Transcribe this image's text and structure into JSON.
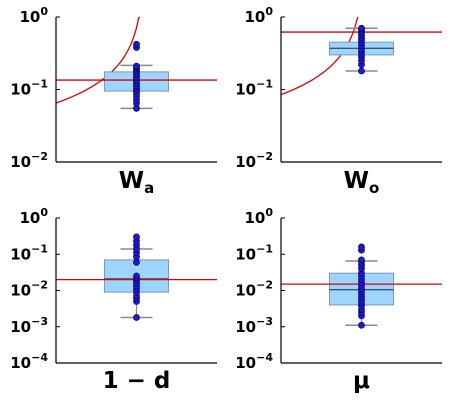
{
  "chart_data": [
    {
      "type": "box",
      "id": "wa",
      "xlabel_main": "W",
      "xlabel_sub": "a",
      "yscale": "log",
      "ylim": [
        0.01,
        1
      ],
      "yticks": [
        {
          "value": 0.01,
          "base": "10",
          "exp": "−2"
        },
        {
          "value": 0.1,
          "base": "10",
          "exp": "−1"
        },
        {
          "value": 1,
          "base": "10",
          "exp": "0"
        }
      ],
      "box": {
        "whisker_low": 0.055,
        "q1": 0.095,
        "median": 0.135,
        "q3": 0.175,
        "whisker_high": 0.215
      },
      "points": [
        0.055,
        0.065,
        0.072,
        0.08,
        0.088,
        0.095,
        0.1,
        0.105,
        0.112,
        0.12,
        0.128,
        0.135,
        0.145,
        0.155,
        0.165,
        0.175,
        0.185,
        0.195,
        0.205,
        0.21,
        0.38,
        0.42
      ],
      "reference_line": 0.135,
      "curve": {
        "y_start": 0.065,
        "asymptote_frac": 0.55
      }
    },
    {
      "type": "box",
      "id": "wo",
      "xlabel_main": "W",
      "xlabel_sub": "o",
      "yscale": "log",
      "ylim": [
        0.01,
        1
      ],
      "yticks": [
        {
          "value": 0.01,
          "base": "10",
          "exp": "−2"
        },
        {
          "value": 0.1,
          "base": "10",
          "exp": "−1"
        },
        {
          "value": 1,
          "base": "10",
          "exp": "0"
        }
      ],
      "box": {
        "whisker_low": 0.18,
        "q1": 0.3,
        "median": 0.37,
        "q3": 0.45,
        "whisker_high": 0.7
      },
      "points": [
        0.18,
        0.22,
        0.25,
        0.28,
        0.3,
        0.33,
        0.36,
        0.4,
        0.44,
        0.48,
        0.52,
        0.56,
        0.6,
        0.64,
        0.68,
        0.7
      ],
      "reference_line": 0.62,
      "curve": {
        "y_start": 0.085,
        "asymptote_frac": 0.52
      }
    },
    {
      "type": "box",
      "id": "one-minus-d",
      "xlabel_main": "1 − d",
      "xlabel_sub": "",
      "yscale": "log",
      "ylim": [
        0.0001,
        1
      ],
      "yticks": [
        {
          "value": 0.0001,
          "base": "10",
          "exp": "−4"
        },
        {
          "value": 0.001,
          "base": "10",
          "exp": "−3"
        },
        {
          "value": 0.01,
          "base": "10",
          "exp": "−2"
        },
        {
          "value": 0.1,
          "base": "10",
          "exp": "−1"
        },
        {
          "value": 1,
          "base": "10",
          "exp": "0"
        }
      ],
      "box": {
        "whisker_low": 0.0018,
        "q1": 0.009,
        "median": 0.021,
        "q3": 0.07,
        "whisker_high": 0.14
      },
      "points": [
        0.0018,
        0.005,
        0.006,
        0.007,
        0.009,
        0.011,
        0.013,
        0.016,
        0.019,
        0.022,
        0.025,
        0.06,
        0.085,
        0.11,
        0.14,
        0.18,
        0.23,
        0.3
      ],
      "reference_line": 0.02,
      "curve": null
    },
    {
      "type": "box",
      "id": "mu",
      "xlabel_main": "μ",
      "xlabel_sub": "",
      "yscale": "log",
      "ylim": [
        0.0001,
        1
      ],
      "yticks": [
        {
          "value": 0.0001,
          "base": "10",
          "exp": "−4"
        },
        {
          "value": 0.001,
          "base": "10",
          "exp": "−3"
        },
        {
          "value": 0.01,
          "base": "10",
          "exp": "−2"
        },
        {
          "value": 0.1,
          "base": "10",
          "exp": "−1"
        },
        {
          "value": 1,
          "base": "10",
          "exp": "0"
        }
      ],
      "box": {
        "whisker_low": 0.0011,
        "q1": 0.004,
        "median": 0.0105,
        "q3": 0.03,
        "whisker_high": 0.065
      },
      "points": [
        0.0011,
        0.002,
        0.0025,
        0.003,
        0.0038,
        0.0045,
        0.0055,
        0.0065,
        0.008,
        0.0095,
        0.011,
        0.013,
        0.016,
        0.02,
        0.025,
        0.03,
        0.04,
        0.05,
        0.06,
        0.07,
        0.13,
        0.16
      ],
      "reference_line": 0.015,
      "curve": null
    }
  ],
  "colors": {
    "box_fill": "#9dd5ff",
    "box_edge": "#7a9bb0",
    "median": "#1a2a3a",
    "whisker": "#8a8a8a",
    "point_fill": "#1f18d6",
    "point_edge": "#0a0a60",
    "reference_line": "#e00000",
    "curve": "#e00000",
    "axis": "#000000"
  }
}
